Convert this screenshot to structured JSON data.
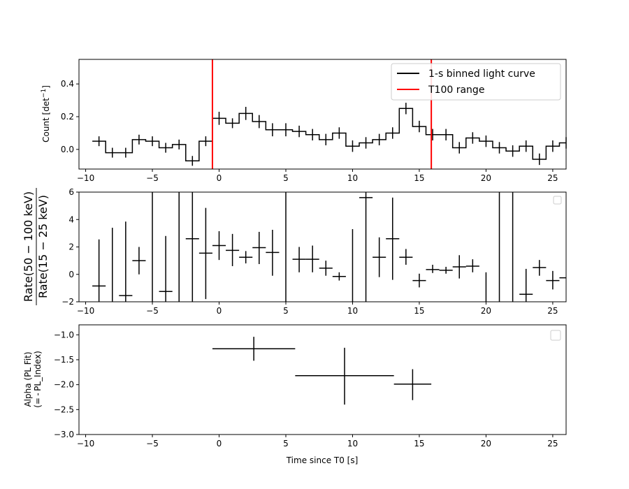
{
  "chart_data": [
    {
      "type": "step-with-errorbars",
      "ylabel": "Count [det$^{-1}$]",
      "ylabel_main": "Count [det",
      "ylabel_sup": "−1",
      "ylabel_tail": "]",
      "xlim": [
        -10.5,
        26
      ],
      "ylim": [
        -0.12,
        0.55
      ],
      "xticks": [
        -10,
        -5,
        0,
        5,
        10,
        15,
        20,
        25
      ],
      "xticklabels": [
        "−10",
        "−5",
        "0",
        "5",
        "10",
        "15",
        "20",
        "25"
      ],
      "yticks": [
        0.0,
        0.2,
        0.4
      ],
      "yticklabels": [
        "0.0",
        "0.2",
        "0.4"
      ],
      "legend": {
        "position": "top-right",
        "entries": [
          {
            "label": "1-s binned light curve",
            "color": "#000000"
          },
          {
            "label": "T100 range",
            "color": "#ff0000"
          }
        ]
      },
      "vlines": [
        {
          "x": -0.5,
          "color": "#ff0000"
        },
        {
          "x": 15.9,
          "color": "#ff0000"
        }
      ],
      "bin_start": -9.5,
      "bin_width": 1,
      "values": [
        0.05,
        -0.02,
        -0.02,
        0.06,
        0.05,
        0.01,
        0.03,
        -0.07,
        0.05,
        0.19,
        0.16,
        0.22,
        0.17,
        0.12,
        0.12,
        0.11,
        0.09,
        0.06,
        0.1,
        0.02,
        0.04,
        0.06,
        0.1,
        0.25,
        0.14,
        0.09,
        0.09,
        0.01,
        0.07,
        0.05,
        0.01,
        -0.01,
        0.02,
        -0.06,
        0.02,
        0.04
      ],
      "errors": [
        0.03,
        0.03,
        0.03,
        0.03,
        0.03,
        0.03,
        0.03,
        0.03,
        0.03,
        0.04,
        0.03,
        0.04,
        0.04,
        0.04,
        0.04,
        0.035,
        0.035,
        0.035,
        0.035,
        0.035,
        0.035,
        0.035,
        0.035,
        0.035,
        0.035,
        0.035,
        0.035,
        0.035,
        0.035,
        0.035,
        0.035,
        0.035,
        0.035,
        0.035,
        0.035,
        0.035
      ]
    },
    {
      "type": "errorbar",
      "ylabel_num": "Rate(50 − 100 keV)",
      "ylabel_den": "Rate(15 − 25 keV)",
      "xlim": [
        -10.5,
        26
      ],
      "ylim": [
        -2,
        6
      ],
      "xticks": [
        -10,
        -5,
        0,
        5,
        10,
        15,
        20,
        25
      ],
      "xticklabels": [
        "−10",
        "−5",
        "0",
        "5",
        "10",
        "15",
        "20",
        "25"
      ],
      "yticks": [
        -2,
        0,
        2,
        4,
        6
      ],
      "yticklabels": [
        "−2",
        "0",
        "2",
        "4",
        "6"
      ],
      "legend": {
        "position": "top-right",
        "entries": []
      },
      "points": [
        {
          "x": -9,
          "y": -0.85,
          "xerr": 0.5,
          "lo": -2,
          "hi": 2.55
        },
        {
          "x": -8,
          "y": null,
          "xerr": 0.5,
          "lo": -2,
          "hi": 3.4
        },
        {
          "x": -7,
          "y": -1.55,
          "xerr": 0.5,
          "lo": -2,
          "hi": 3.85
        },
        {
          "x": -6,
          "y": 1.0,
          "xerr": 0.5,
          "lo": 0,
          "hi": 2.0
        },
        {
          "x": -5,
          "y": null,
          "xerr": 0.5,
          "lo": -2,
          "hi": 6
        },
        {
          "x": -4,
          "y": -1.25,
          "xerr": 0.5,
          "lo": -2,
          "hi": 2.8
        },
        {
          "x": -3,
          "y": null,
          "xerr": 0.5,
          "lo": -2,
          "hi": 6
        },
        {
          "x": -2,
          "y": 2.6,
          "xerr": 0.5,
          "lo": -2,
          "hi": 6
        },
        {
          "x": -1,
          "y": 1.55,
          "xerr": 0.5,
          "lo": -1.8,
          "hi": 4.85
        },
        {
          "x": 0,
          "y": 2.1,
          "xerr": 0.5,
          "lo": 1.05,
          "hi": 3.15
        },
        {
          "x": 1,
          "y": 1.75,
          "xerr": 0.5,
          "lo": 0.6,
          "hi": 2.95
        },
        {
          "x": 2,
          "y": 1.25,
          "xerr": 0.5,
          "lo": 0.8,
          "hi": 1.7
        },
        {
          "x": 3,
          "y": 1.95,
          "xerr": 0.5,
          "lo": 0.75,
          "hi": 3.1
        },
        {
          "x": 4,
          "y": 1.6,
          "xerr": 0.5,
          "lo": -0.1,
          "hi": 3.25
        },
        {
          "x": 5,
          "y": null,
          "xerr": 0.5,
          "lo": -2,
          "hi": 6
        },
        {
          "x": 6,
          "y": 1.1,
          "xerr": 0.5,
          "lo": 0.15,
          "hi": 2.0
        },
        {
          "x": 7,
          "y": 1.1,
          "xerr": 0.5,
          "lo": 0.15,
          "hi": 2.1
        },
        {
          "x": 8,
          "y": 0.45,
          "xerr": 0.5,
          "lo": -0.1,
          "hi": 1.0
        },
        {
          "x": 9,
          "y": -0.15,
          "xerr": 0.5,
          "lo": -0.45,
          "hi": 0.15
        },
        {
          "x": 10,
          "y": null,
          "xerr": 0.5,
          "lo": -2,
          "hi": 3.3
        },
        {
          "x": 11,
          "y": 5.6,
          "xerr": 0.5,
          "lo": -2,
          "hi": 6
        },
        {
          "x": 12,
          "y": 1.25,
          "xerr": 0.5,
          "lo": -0.2,
          "hi": 2.7
        },
        {
          "x": 13,
          "y": 2.6,
          "xerr": 0.5,
          "lo": -0.4,
          "hi": 5.6
        },
        {
          "x": 14,
          "y": 1.25,
          "xerr": 0.5,
          "lo": 0.7,
          "hi": 1.85
        },
        {
          "x": 15,
          "y": -0.45,
          "xerr": 0.5,
          "lo": -0.95,
          "hi": 0.05
        },
        {
          "x": 16,
          "y": 0.35,
          "xerr": 0.5,
          "lo": 0.1,
          "hi": 0.7
        },
        {
          "x": 17,
          "y": 0.3,
          "xerr": 0.5,
          "lo": 0.05,
          "hi": 0.55
        },
        {
          "x": 18,
          "y": 0.55,
          "xerr": 0.5,
          "lo": -0.3,
          "hi": 1.4
        },
        {
          "x": 19,
          "y": 0.6,
          "xerr": 0.5,
          "lo": 0.15,
          "hi": 1.1
        },
        {
          "x": 20,
          "y": null,
          "xerr": 0.5,
          "lo": -2,
          "hi": 0.15
        },
        {
          "x": 21,
          "y": null,
          "xerr": 0.5,
          "lo": -2,
          "hi": 6
        },
        {
          "x": 22,
          "y": null,
          "xerr": 0.5,
          "lo": -2,
          "hi": 6
        },
        {
          "x": 23,
          "y": -1.45,
          "xerr": 0.5,
          "lo": -2,
          "hi": 0.4
        },
        {
          "x": 24,
          "y": 0.5,
          "xerr": 0.5,
          "lo": -0.1,
          "hi": 1.05
        },
        {
          "x": 25,
          "y": -0.45,
          "xerr": 0.5,
          "lo": -1.1,
          "hi": 0.25
        },
        {
          "x": 26,
          "y": -0.25,
          "xerr": 0.5,
          "lo": -0.25,
          "hi": -0.25
        }
      ]
    },
    {
      "type": "errorbar",
      "ylabel_line1": "Alpha (PL Fit)",
      "ylabel_line2": "(= - PL_Index)",
      "xlabel": "Time since T0 [s]",
      "xlim": [
        -10.5,
        26
      ],
      "ylim": [
        -3.0,
        -0.8
      ],
      "xticks": [
        -10,
        -5,
        0,
        5,
        10,
        15,
        20,
        25
      ],
      "xticklabels": [
        "−10",
        "−5",
        "0",
        "5",
        "10",
        "15",
        "20",
        "25"
      ],
      "yticks": [
        -1.0,
        -1.5,
        -2.0,
        -2.5,
        -3.0
      ],
      "yticklabels": [
        "−1.0",
        "−1.5",
        "−2.0",
        "−2.5",
        "−3.0"
      ],
      "legend": {
        "position": "top-right",
        "entries": []
      },
      "points": [
        {
          "x": 2.6,
          "y": -1.28,
          "xlo": -0.5,
          "xhi": 5.7,
          "lo": -1.52,
          "hi": -1.04
        },
        {
          "x": 9.4,
          "y": -1.82,
          "xlo": 5.7,
          "xhi": 13.1,
          "lo": -2.4,
          "hi": -1.26
        },
        {
          "x": 14.5,
          "y": -1.99,
          "xlo": 13.1,
          "xhi": 15.9,
          "lo": -2.31,
          "hi": -1.69
        }
      ]
    }
  ]
}
